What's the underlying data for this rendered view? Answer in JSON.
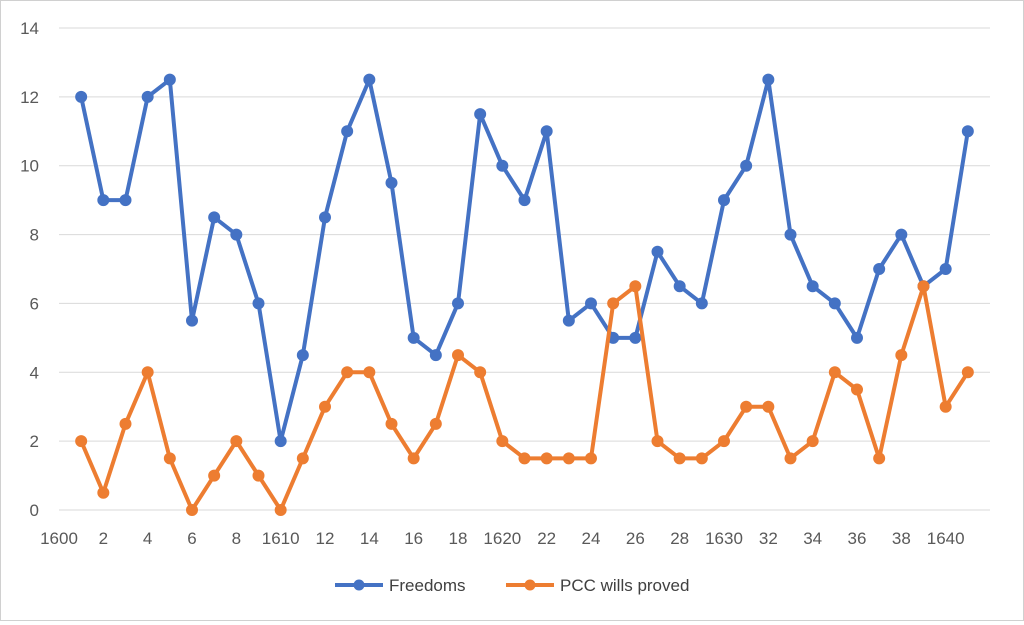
{
  "chart_data": {
    "type": "line",
    "title": "",
    "xlabel": "",
    "ylabel": "",
    "ylim": [
      0,
      14
    ],
    "yticks": [
      0,
      2,
      4,
      6,
      8,
      10,
      12,
      14
    ],
    "grid": "horizontal",
    "legend_position": "bottom",
    "x_tick_labels": [
      "1600",
      "2",
      "4",
      "6",
      "8",
      "1610",
      "12",
      "14",
      "16",
      "18",
      "1620",
      "22",
      "24",
      "26",
      "28",
      "1630",
      "32",
      "34",
      "36",
      "38",
      "1640"
    ],
    "x": [
      1601,
      1602,
      1603,
      1604,
      1605,
      1606,
      1607,
      1608,
      1609,
      1610,
      1611,
      1612,
      1613,
      1614,
      1615,
      1616,
      1617,
      1618,
      1619,
      1620,
      1621,
      1622,
      1623,
      1624,
      1625,
      1626,
      1627,
      1628,
      1629,
      1630,
      1631,
      1632,
      1633,
      1634,
      1635,
      1636,
      1637,
      1638,
      1639,
      1640,
      1641
    ],
    "series": [
      {
        "name": "Freedoms",
        "color": "#4472C4",
        "values": [
          12,
          9,
          9,
          12,
          12.5,
          5.5,
          8.5,
          8,
          6,
          2,
          4.5,
          8.5,
          11,
          12.5,
          9.5,
          5,
          4.5,
          6,
          11.5,
          10,
          9,
          11,
          5.5,
          6,
          5,
          5,
          7.5,
          6.5,
          6,
          9,
          10,
          12.5,
          8,
          6.5,
          6,
          5,
          7,
          8,
          6.5,
          7,
          11
        ]
      },
      {
        "name": "PCC wills proved",
        "color": "#ED7D31",
        "values": [
          2,
          0.5,
          2.5,
          4,
          1.5,
          0,
          1,
          2,
          1,
          0,
          1.5,
          3,
          4,
          4,
          2.5,
          1.5,
          2.5,
          4.5,
          4,
          2,
          1.5,
          1.5,
          1.5,
          1.5,
          6,
          6.5,
          2,
          1.5,
          1.5,
          2,
          3,
          3,
          1.5,
          2,
          4,
          3.5,
          1.5,
          4.5,
          6.5,
          3,
          4
        ]
      }
    ]
  }
}
